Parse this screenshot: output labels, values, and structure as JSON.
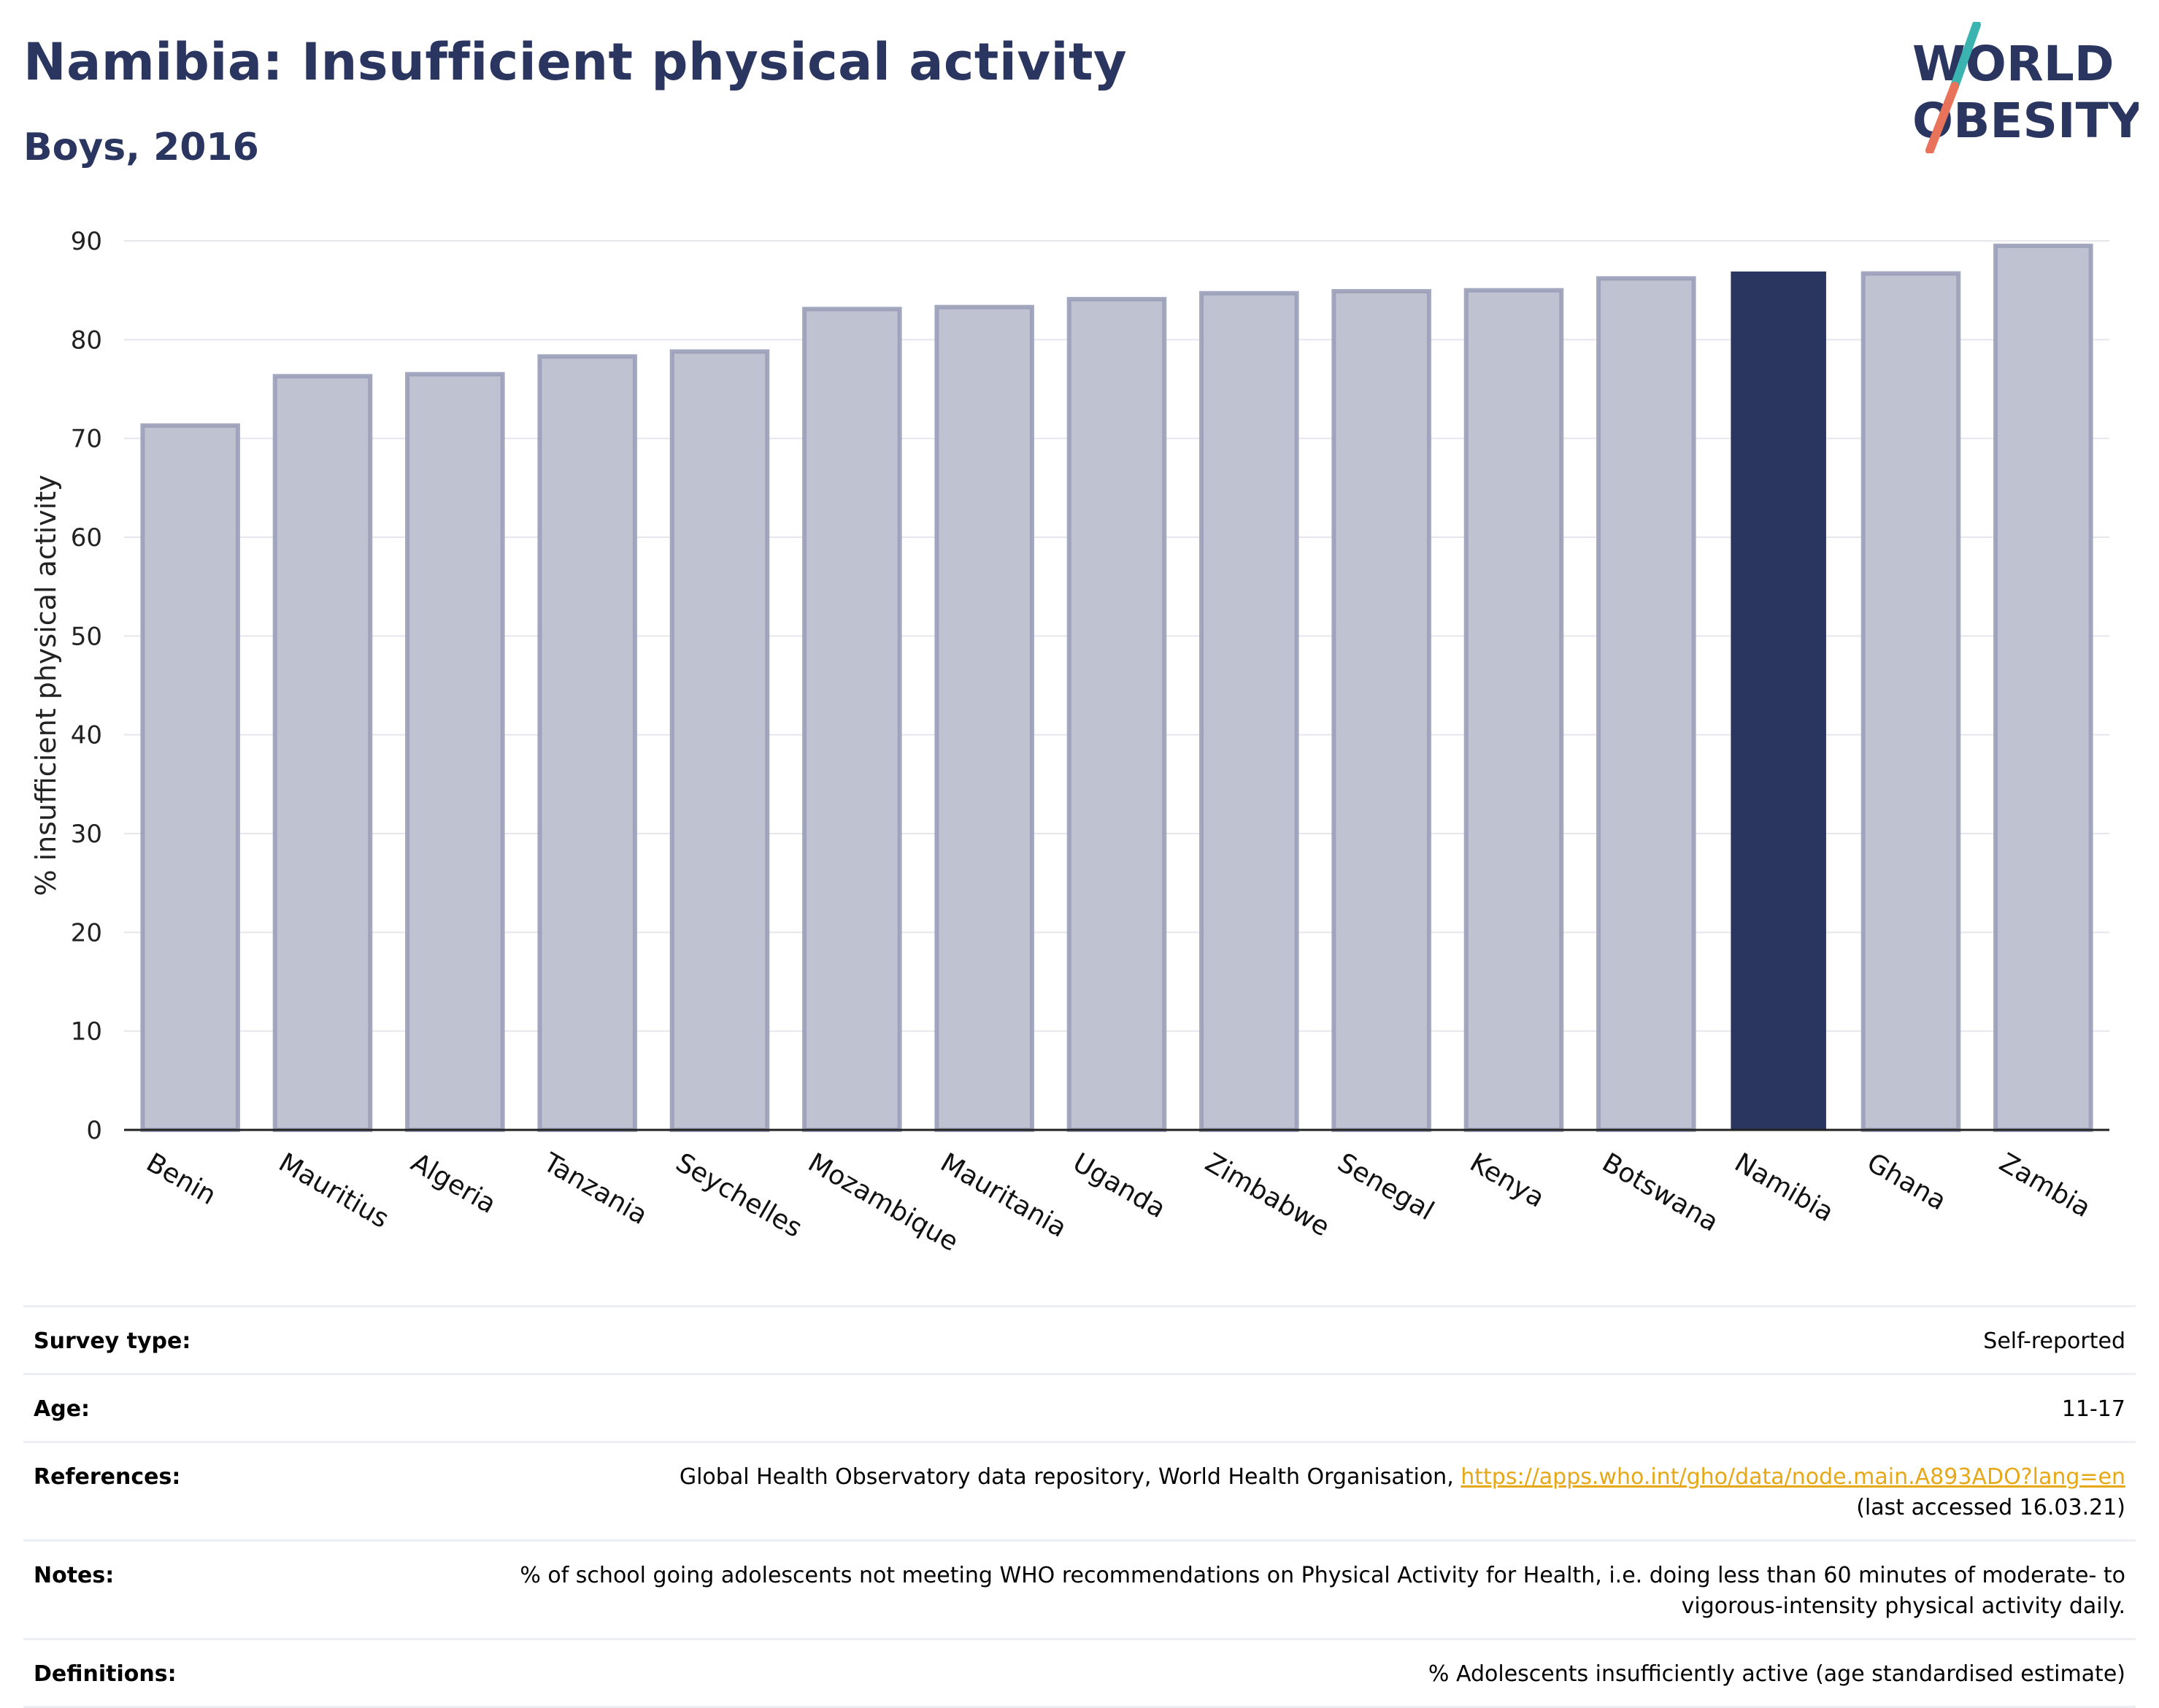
{
  "title": "Namibia: Insufficient physical activity",
  "subtitle": "Boys, 2016",
  "logo": {
    "line1": "WORLD",
    "line2": "OBESITY",
    "colors": {
      "text": "#2a3560",
      "slash_top": "#3bb3b0",
      "slash_bottom": "#e8735a"
    }
  },
  "colors": {
    "bar": "#bfc2d0",
    "bar_stroke": "#9a9fb8",
    "highlight": "#2a3560",
    "grid": "#e6e7ee",
    "link": "#e6a817"
  },
  "chart_data": {
    "type": "bar",
    "ylabel": "% insufficient physical activity",
    "ylim": [
      0,
      90
    ],
    "yticks": [
      0,
      10,
      20,
      30,
      40,
      50,
      60,
      70,
      80,
      90
    ],
    "grid": true,
    "categories": [
      "Benin",
      "Mauritius",
      "Algeria",
      "Tanzania",
      "Seychelles",
      "Mozambique",
      "Mauritania",
      "Uganda",
      "Zimbabwe",
      "Senegal",
      "Kenya",
      "Botswana",
      "Namibia",
      "Ghana",
      "Zambia"
    ],
    "values": [
      71.3,
      76.3,
      76.5,
      78.3,
      78.8,
      83.1,
      83.3,
      84.1,
      84.7,
      84.9,
      85.0,
      86.2,
      86.9,
      86.7,
      89.5
    ],
    "highlight": "Namibia"
  },
  "info": [
    {
      "label": "Survey type:",
      "value": "Self-reported"
    },
    {
      "label": "Age:",
      "value": "11-17"
    },
    {
      "label": "References:",
      "value": "Global Health Observatory data repository, World Health Organisation, ",
      "link": "https://apps.who.int/gho/data/node.main.A893ADO?lang=en",
      "value2": "(last accessed 16.03.21)"
    },
    {
      "label": "Notes:",
      "value": "% of school going adolescents not meeting WHO recommendations on Physical Activity for Health, i.e. doing less than 60 minutes of moderate- to vigorous-intensity physical activity daily."
    },
    {
      "label": "Definitions:",
      "value": "% Adolescents insufficiently active (age standardised estimate)"
    }
  ]
}
